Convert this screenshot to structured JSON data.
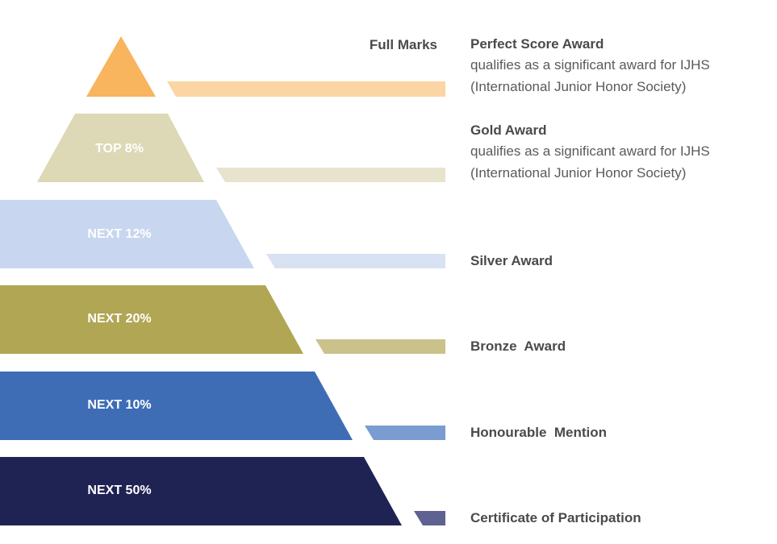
{
  "full_marks": "Full Marks",
  "tiers": [
    {
      "label": "",
      "color": "#F9B45E",
      "bar_color": "#FBD5A4"
    },
    {
      "label": "TOP 8%",
      "color": "#DDD8B5",
      "bar_color": "#E7E3CD"
    },
    {
      "label": "NEXT 12%",
      "color": "#C8D6EF",
      "bar_color": "#D8E2F3"
    },
    {
      "label": "NEXT 20%",
      "color": "#B0A654",
      "bar_color": "#CAC28A"
    },
    {
      "label": "NEXT 10%",
      "color": "#3E6DB6",
      "bar_color": "#7A9CD0"
    },
    {
      "label": "NEXT 50%",
      "color": "#1F2354",
      "bar_color": "#5E6290"
    }
  ],
  "awards": [
    {
      "title": "Perfect Score Award",
      "desc1": "qualifies as a significant award for IJHS",
      "desc2": "(International Junior Honor Society)"
    },
    {
      "title": "Gold Award",
      "desc1": "qualifies as a significant award for IJHS",
      "desc2": "(International Junior Honor Society)"
    },
    {
      "title": "Silver Award"
    },
    {
      "title": "Bronze  Award"
    },
    {
      "title": "Honourable  Mention"
    },
    {
      "title": "Certificate of Participation"
    }
  ]
}
